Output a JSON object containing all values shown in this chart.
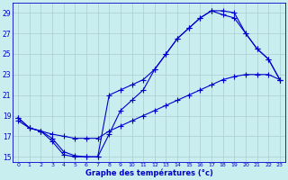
{
  "line1_x": [
    0,
    1,
    2,
    3,
    4,
    5,
    6,
    7,
    8,
    9,
    10,
    11,
    12,
    13,
    14,
    15,
    16,
    17,
    18,
    19,
    20,
    21,
    22,
    23
  ],
  "line1_y": [
    18.8,
    17.8,
    17.5,
    16.5,
    15.2,
    15.0,
    15.0,
    15.0,
    17.2,
    19.5,
    20.5,
    21.5,
    23.5,
    25.0,
    26.5,
    27.5,
    28.5,
    29.2,
    29.2,
    29.0,
    27.0,
    25.5,
    24.5,
    22.5
  ],
  "line2_x": [
    0,
    1,
    2,
    3,
    4,
    5,
    6,
    7,
    8,
    9,
    10,
    11,
    12,
    13,
    14,
    15,
    16,
    17,
    18,
    19,
    20,
    21,
    22,
    23
  ],
  "line2_y": [
    18.8,
    17.8,
    17.5,
    16.8,
    15.5,
    15.1,
    15.0,
    15.0,
    21.0,
    21.5,
    22.0,
    22.5,
    23.5,
    25.0,
    26.5,
    27.5,
    28.5,
    29.2,
    28.8,
    28.5,
    27.0,
    25.5,
    24.5,
    22.5
  ],
  "line3_x": [
    0,
    1,
    2,
    3,
    4,
    5,
    6,
    7,
    8,
    9,
    10,
    11,
    12,
    13,
    14,
    15,
    16,
    17,
    18,
    19,
    20,
    21,
    22,
    23
  ],
  "line3_y": [
    18.5,
    17.8,
    17.5,
    17.2,
    17.0,
    16.8,
    16.8,
    16.8,
    17.5,
    18.0,
    18.5,
    19.0,
    19.5,
    20.0,
    20.5,
    21.0,
    21.5,
    22.0,
    22.5,
    22.8,
    23.0,
    23.0,
    23.0,
    22.5
  ],
  "line_color": "#0000cc",
  "bg_color": "#c8eef0",
  "grid_color": "#aacece",
  "xlabel": "Graphe des températures (°c)",
  "yticks": [
    15,
    17,
    19,
    21,
    23,
    25,
    27,
    29
  ],
  "xticks": [
    0,
    1,
    2,
    3,
    4,
    5,
    6,
    7,
    8,
    9,
    10,
    11,
    12,
    13,
    14,
    15,
    16,
    17,
    18,
    19,
    20,
    21,
    22,
    23
  ],
  "ylim": [
    14.5,
    30.0
  ],
  "xlim": [
    -0.5,
    23.5
  ],
  "figwidth": 3.2,
  "figheight": 2.0,
  "dpi": 100
}
